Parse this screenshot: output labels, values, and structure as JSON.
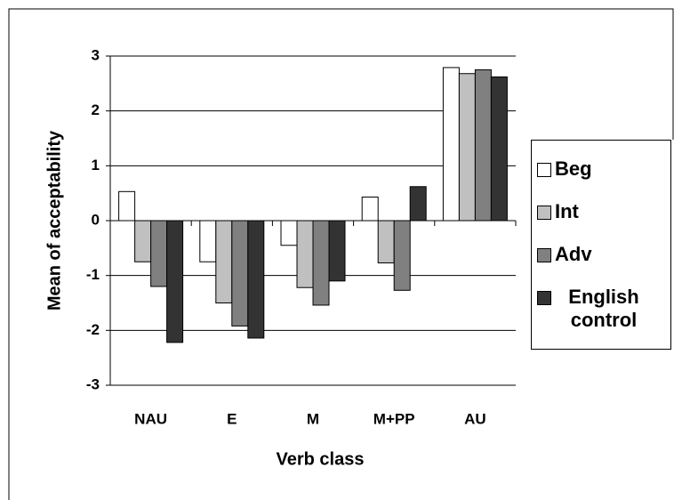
{
  "chart_data": {
    "type": "bar",
    "xlabel": "Verb class",
    "ylabel": "Mean of acceptability",
    "categories": [
      "NAU",
      "E",
      "M",
      "M+PP",
      "AU"
    ],
    "series": [
      {
        "name": "Beg",
        "color": "#ffffff",
        "values": [
          0.53,
          -0.75,
          -0.45,
          0.43,
          2.79
        ]
      },
      {
        "name": "Int",
        "color": "#c0c0c0",
        "values": [
          -0.75,
          -1.5,
          -1.22,
          -0.77,
          2.68
        ]
      },
      {
        "name": "Adv",
        "color": "#808080",
        "values": [
          -1.2,
          -1.92,
          -1.54,
          -1.27,
          2.75
        ]
      },
      {
        "name": "English control",
        "color": "#333333",
        "values": [
          -2.22,
          -2.14,
          -1.1,
          0.62,
          2.62
        ]
      }
    ],
    "ylim": [
      -3,
      3
    ],
    "yticks": [
      -3,
      -2,
      -1,
      0,
      1,
      2,
      3
    ],
    "grid": true,
    "legend": "right"
  }
}
